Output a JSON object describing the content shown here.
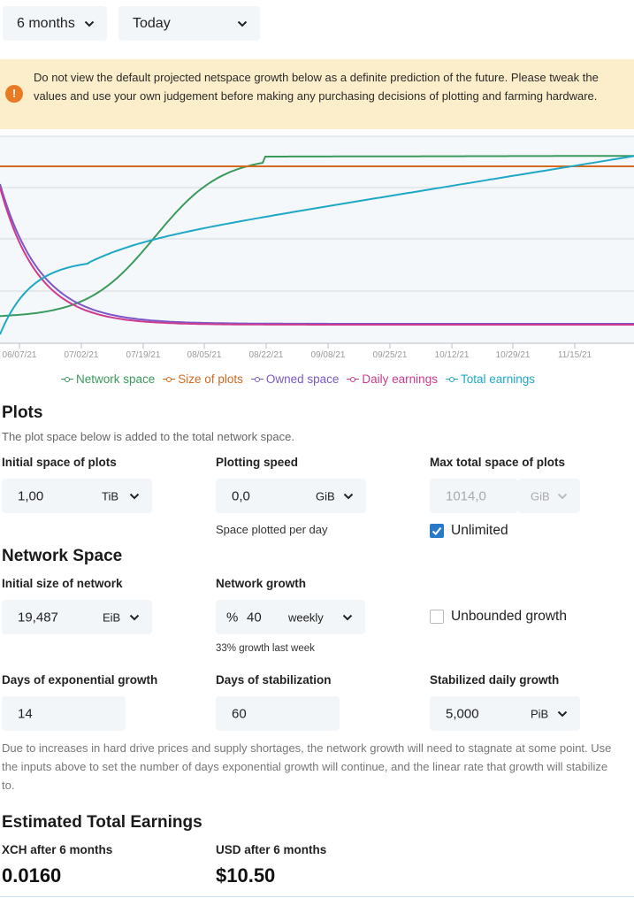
{
  "controls": {
    "period": "6 months",
    "start": "Today"
  },
  "warning": {
    "icon": "exclamation-icon",
    "text": "Do not view the default projected netspace growth below as a definite prediction of the future. Please tweak the values and use your own judgement before making any purchasing decisions of plotting and farming hardware."
  },
  "chart_data": {
    "type": "line",
    "x_ticks": [
      "06/07/21",
      "07/02/21",
      "07/19/21",
      "08/05/21",
      "08/22/21",
      "09/08/21",
      "09/25/21",
      "10/12/21",
      "10/29/21",
      "11/15/21"
    ],
    "y_axis": "no tick labels shown",
    "grid": true,
    "legend_position": "bottom",
    "series": [
      {
        "name": "Network space",
        "color": "#3a9a5c",
        "shape": "logistic rise from low to plateau near top, then slight linear rise"
      },
      {
        "name": "Size of plots",
        "color": "#d2691e",
        "shape": "constant"
      },
      {
        "name": "Owned space",
        "color": "#7b58c9",
        "shape": "decay from high to flat near bottom"
      },
      {
        "name": "Daily earnings",
        "color": "#cc3b8d",
        "shape": "decay from high to flat near bottom"
      },
      {
        "name": "Total earnings",
        "color": "#1ea8c6",
        "shape": "rises steeply then steadily to top"
      }
    ]
  },
  "plots": {
    "title": "Plots",
    "subtitle": "The plot space below is added to the total network space.",
    "initial": {
      "label": "Initial space of plots",
      "value": "1,00",
      "unit": "TiB"
    },
    "speed": {
      "label": "Plotting speed",
      "value": "0,0",
      "unit": "GiB",
      "hint": "Space plotted per day"
    },
    "max": {
      "label": "Max total space of plots",
      "value": "1014,0",
      "unit": "GiB",
      "checkbox_label": "Unlimited",
      "checked": true
    }
  },
  "network": {
    "title": "Network Space",
    "initial": {
      "label": "Initial size of network",
      "value": "19,487",
      "unit": "EiB"
    },
    "growth": {
      "label": "Network growth",
      "prefix": "%",
      "value": "40",
      "period": "weekly",
      "hint": "33% growth last week"
    },
    "unbounded": {
      "label": "Unbounded growth",
      "checked": false
    },
    "days_exp": {
      "label": "Days of exponential growth",
      "value": "14"
    },
    "days_stab": {
      "label": "Days of stabilization",
      "value": "60"
    },
    "stab_growth": {
      "label": "Stabilized daily growth",
      "value": "5,000",
      "unit": "PiB"
    },
    "note": "Due to increases in hard drive prices and supply shortages, the network growth will need to stagnate at some point. Use the inputs above to set the number of days exponential growth will continue, and the linear rate that growth will stabilize to."
  },
  "earnings": {
    "title": "Estimated Total Earnings",
    "xch_label": "XCH after 6 months",
    "xch_value": "0.0160",
    "usd_label": "USD after 6 months",
    "usd_value": "$10.50"
  }
}
